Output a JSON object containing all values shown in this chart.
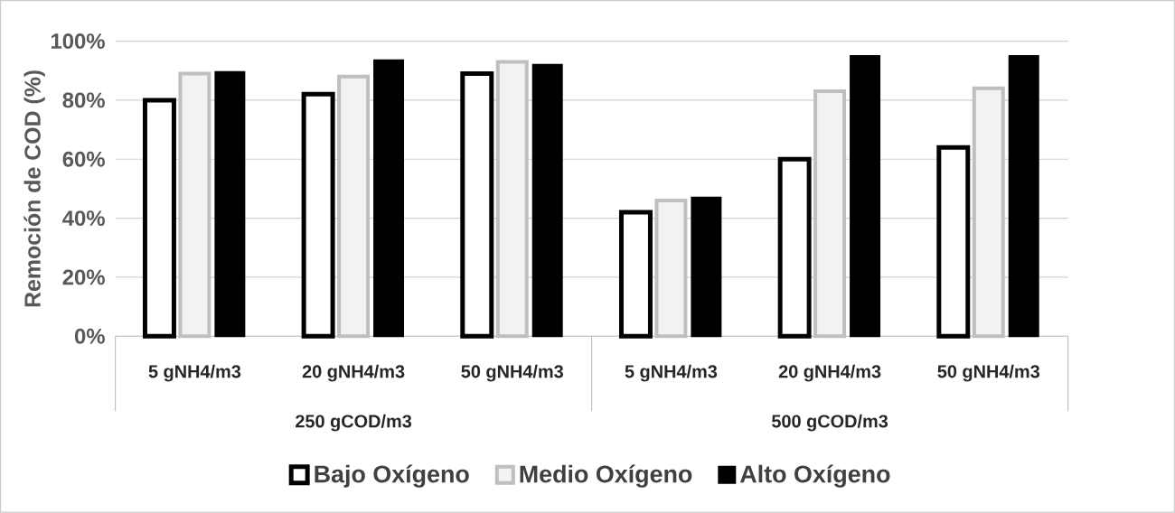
{
  "chart_data": {
    "type": "bar",
    "ylabel": "Remoción de COD (%)",
    "categories": [
      "5 gNH4/m3",
      "20 gNH4/m3",
      "50 gNH4/m3",
      "5 gNH4/m3",
      "20 gNH4/m3",
      "50 gNH4/m3"
    ],
    "annotations": [
      "250 gCOD/m3",
      "500 gCOD/m3"
    ],
    "series": [
      {
        "name": "Bajo Oxígeno",
        "color": "#ffffff",
        "values": [
          80,
          82,
          89,
          42,
          60,
          64
        ]
      },
      {
        "name": "Medio Oxígeno",
        "color": "#f2f2f2",
        "values": [
          89,
          88,
          93,
          46,
          83,
          84
        ]
      },
      {
        "name": "Alto Oxígeno",
        "color": "#000000",
        "values": [
          89.5,
          93.5,
          92,
          47,
          95,
          95
        ]
      }
    ],
    "ylim": [
      0,
      100
    ],
    "yticks": [
      {
        "value": 0,
        "label": "0%"
      },
      {
        "value": 20,
        "label": "20%"
      },
      {
        "value": 40,
        "label": "40%"
      },
      {
        "value": 60,
        "label": "60%"
      },
      {
        "value": 80,
        "label": "80%"
      },
      {
        "value": 100,
        "label": "100%"
      }
    ],
    "grid": "y",
    "legend": "bottom"
  }
}
